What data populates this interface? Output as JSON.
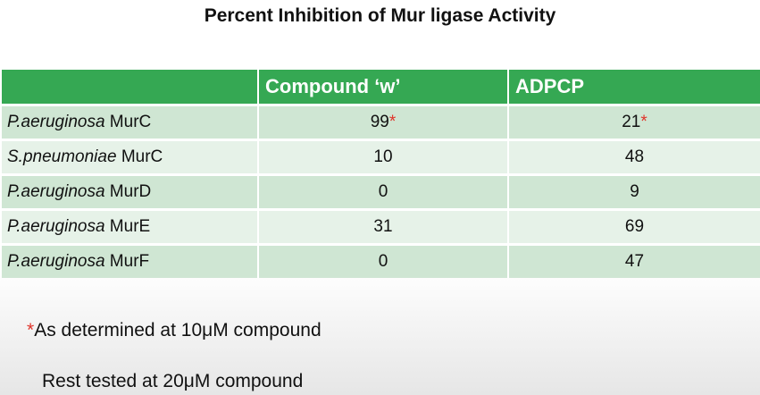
{
  "title": "Percent Inhibition of Mur ligase Activity",
  "table": {
    "headers": [
      "",
      "Compound ‘w’",
      "ADPCP"
    ],
    "rows": [
      {
        "species": "P.aeruginosa",
        "enzyme": " MurC",
        "compound_w": "99",
        "compound_w_mark": "*",
        "adpcp": "21",
        "adpcp_mark": "*"
      },
      {
        "species": "S.pneumoniae",
        "enzyme": " MurC",
        "compound_w": "10",
        "compound_w_mark": "",
        "adpcp": "48",
        "adpcp_mark": ""
      },
      {
        "species": "P.aeruginosa",
        "enzyme": " MurD",
        "compound_w": "0",
        "compound_w_mark": "",
        "adpcp": "9",
        "adpcp_mark": ""
      },
      {
        "species": "P.aeruginosa",
        "enzyme": " MurE",
        "compound_w": "31",
        "compound_w_mark": "",
        "adpcp": "69",
        "adpcp_mark": ""
      },
      {
        "species": "P.aeruginosa",
        "enzyme": " MurF",
        "compound_w": "0",
        "compound_w_mark": "",
        "adpcp": "47",
        "adpcp_mark": ""
      }
    ]
  },
  "notes": {
    "asterisk": "*",
    "note1": "As determined at 10μM compound",
    "note2": "Rest tested at 20μM compound"
  },
  "colors": {
    "header_green": "#35a853",
    "row_dark": "#cfe6d3",
    "row_light": "#e6f2e8",
    "asterisk_red": "#e0342a"
  }
}
